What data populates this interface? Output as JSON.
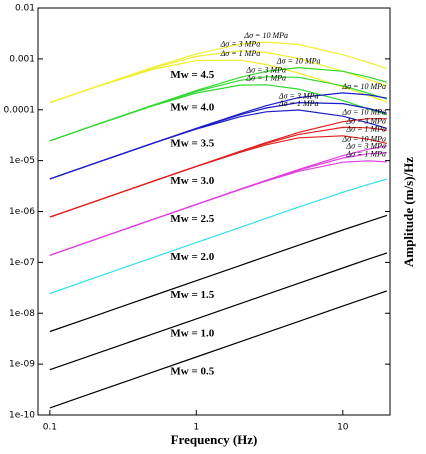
{
  "chart_data": {
    "type": "line",
    "x_label": "Frequency (Hz)",
    "y_label": "Amplitude (m/s)/Hz",
    "log_x": true,
    "log_y": true,
    "xlim": [
      0.083,
      21
    ],
    "ylim": [
      1e-10,
      0.01
    ],
    "xticks": [
      0.1,
      1,
      10
    ],
    "yticks": [
      {
        "value": 1e-10,
        "label": "1e-10"
      },
      {
        "value": 1e-09,
        "label": "1e-09"
      },
      {
        "value": 1e-08,
        "label": "1e-08"
      },
      {
        "value": 1e-07,
        "label": "1e-07"
      },
      {
        "value": 1e-06,
        "label": "1e-06"
      },
      {
        "value": 1e-05,
        "label": "1e-05"
      },
      0.0001,
      0.001,
      0.01
    ],
    "x": [
      0.1,
      0.2,
      0.5,
      1,
      2,
      3,
      5,
      10,
      15,
      20
    ],
    "series": [
      {
        "name": "Mw = 4.5",
        "color": "#f0ee30",
        "curves": [
          {
            "name": "Δσ = 1 MPa",
            "values": [
              0.000137,
              0.000271,
              0.000617,
              0.000931,
              0.000942,
              0.000774,
              0.000528,
              0.000281,
              0.000189,
              0.000142
            ]
          },
          {
            "name": "Δσ = 3 MPa",
            "values": [
              0.000138,
              0.000274,
              0.000653,
              0.00112,
              0.00144,
              0.00134,
              0.00102,
              0.000573,
              0.000391,
              0.000295
            ]
          },
          {
            "name": "Δσ = 10 MPa",
            "values": [
              0.000138,
              0.000275,
              0.000673,
              0.00125,
              0.00195,
              0.00214,
              0.00192,
              0.00121,
              0.000849,
              0.000649
            ]
          }
        ]
      },
      {
        "name": "Mw = 4.0",
        "color": "#30d830",
        "curves": [
          {
            "name": "Δσ = 1 MPa",
            "values": [
              2.45e-05,
              4.88e-05,
              0.000118,
              0.000213,
              0.000305,
              0.00031,
              0.000255,
              0.000151,
              0.000104,
              7.92e-05
            ]
          },
          {
            "name": "Δσ = 3 MPa",
            "values": [
              2.45e-05,
              4.9e-05,
              0.000121,
              0.000229,
              0.00038,
              0.000445,
              0.000435,
              0.000296,
              0.000211,
              0.000163
            ]
          },
          {
            "name": "Δσ = 10 MPa",
            "values": [
              2.45e-05,
              4.9e-05,
              0.000122,
              0.000238,
              0.000434,
              0.000568,
              0.000673,
              0.000571,
              0.000438,
              0.000347
            ]
          }
        ]
      },
      {
        "name": "Mw = 3.5",
        "color": "#1c1cc8",
        "curves": [
          {
            "name": "Δσ = 1 MPa",
            "values": [
              4.37e-06,
              8.71e-06,
              2.16e-05,
              4.16e-05,
              7.31e-05,
              9.12e-05,
              9.89e-05,
              7.48e-05,
              5.51e-05,
              4.3e-05
            ]
          },
          {
            "name": "Δσ = 3 MPa",
            "values": [
              4.37e-06,
              8.73e-06,
              2.17e-05,
              4.27e-05,
              8e-05,
              0.000108,
              0.000138,
              0.000132,
              0.000106,
              8.53e-05
            ]
          },
          {
            "name": "Δσ = 10 MPa",
            "values": [
              4.37e-06,
              8.73e-06,
              2.18e-05,
              4.32e-05,
              8.38e-05,
              0.00012,
              0.000173,
              0.000214,
              0.000196,
              0.000169
            ]
          }
        ]
      },
      {
        "name": "Mw = 3.0",
        "color": "#e02020",
        "curves": [
          {
            "name": "Δσ = 1 MPa",
            "values": [
              7.76e-07,
              1.55e-06,
              3.86e-06,
              7.64e-06,
              1.46e-05,
              2.05e-05,
              2.81e-05,
              3.07e-05,
              2.62e-05,
              2.18e-05
            ]
          },
          {
            "name": "Δσ = 3 MPa",
            "values": [
              7.76e-07,
              1.55e-06,
              3.87e-06,
              7.71e-06,
              1.51e-05,
              2.18e-05,
              3.28e-05,
              4.49e-05,
              4.41e-05,
              3.95e-05
            ]
          },
          {
            "name": "Δσ = 10 MPa",
            "values": [
              7.76e-07,
              1.55e-06,
              3.88e-06,
              7.74e-06,
              1.53e-05,
              2.26e-05,
              3.58e-05,
              5.83e-05,
              6.68e-05,
              6.68e-05
            ]
          }
        ]
      },
      {
        "name": "Mw = 2.5",
        "color": "#e040e0",
        "curves": [
          {
            "name": "Δσ = 1 MPa",
            "values": [
              1.38e-07,
              2.76e-07,
              6.89e-07,
              1.37e-06,
              2.71e-06,
              3.97e-06,
              6.17e-06,
              9.31e-06,
              9.93e-06,
              9.42e-06
            ]
          },
          {
            "name": "Δσ = 3 MPa",
            "values": [
              1.38e-07,
              2.76e-07,
              6.9e-07,
              1.38e-06,
              2.74e-06,
              4.06e-06,
              6.53e-06,
              1.12e-05,
              1.36e-05,
              1.44e-05
            ]
          },
          {
            "name": "Δσ = 10 MPa",
            "values": [
              1.38e-07,
              2.76e-07,
              6.9e-07,
              1.38e-06,
              2.75e-06,
              4.1e-06,
              6.73e-06,
              1.25e-05,
              1.68e-05,
              1.95e-05
            ]
          }
        ]
      },
      {
        "name": "Mw = 2.0",
        "color": "#30e0e8",
        "values": [
          2.45e-08,
          4.91e-08,
          1.23e-07,
          2.45e-07,
          4.9e-07,
          7.35e-07,
          1.22e-06,
          2.38e-06,
          3.43e-06,
          4.34e-06
        ]
      },
      {
        "name": "Mw = 1.5",
        "color": "#000000",
        "values": [
          4.37e-09,
          8.73e-09,
          2.18e-08,
          4.37e-08,
          8.73e-08,
          1.31e-07,
          2.18e-07,
          4.32e-07,
          6.4e-07,
          8.38e-07
        ]
      },
      {
        "name": "Mw = 1.0",
        "color": "#000000",
        "values": [
          7.76e-10,
          1.55e-09,
          3.88e-09,
          7.76e-09,
          1.55e-08,
          2.33e-08,
          3.88e-08,
          7.74e-08,
          1.16e-07,
          1.53e-07
        ]
      },
      {
        "name": "Mw = 0.5",
        "color": "#000000",
        "values": [
          1.38e-10,
          2.76e-10,
          6.9e-10,
          1.38e-09,
          2.76e-09,
          4.14e-09,
          6.9e-09,
          1.38e-08,
          2.07e-08,
          2.75e-08
        ]
      }
    ]
  }
}
